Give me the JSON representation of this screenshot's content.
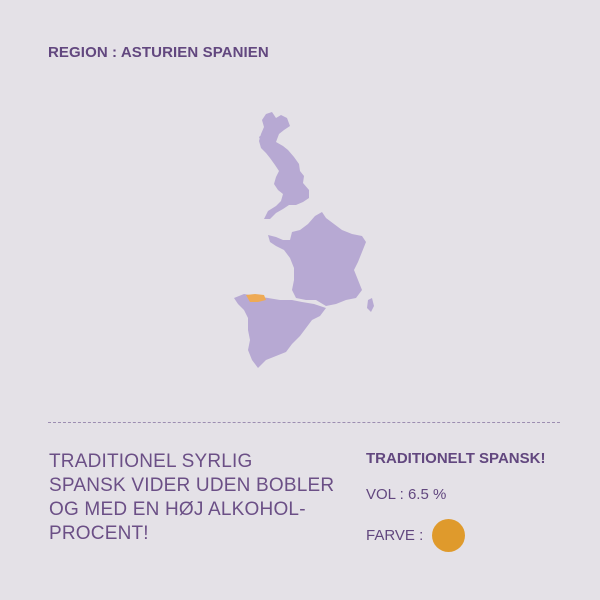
{
  "region": {
    "label": "REGION : ASTURIEN SPANIEN"
  },
  "map": {
    "land_color": "#b7a9d3",
    "highlight_color": "#eeaa55",
    "highlight_region": "Asturien",
    "countries_shown": [
      "United Kingdom",
      "France",
      "Spain"
    ]
  },
  "info": {
    "description": "TRADITIONEL SYRLIG\nSPANSK VIDER UDEN BOBLER\nOG MED EN HØJ ALKOHOL-\nPROCENT!",
    "tag": "TRADITIONELT SPANSK!",
    "vol_label": "VOL : 6.5 %",
    "farve_label": "FARVE :",
    "farve_color": "#df9a2c"
  }
}
